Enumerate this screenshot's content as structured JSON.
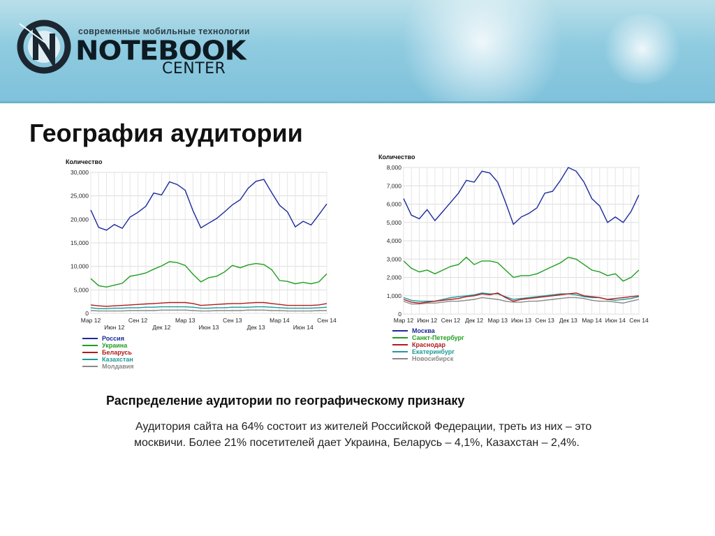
{
  "header": {
    "logo_tagline": "современные мобильные технологии",
    "logo_main": "NOTEBOOK",
    "logo_sub": "CENTER"
  },
  "page_title": "География аудитории",
  "section_title": "Распределение аудитории по географическому признаку",
  "body_text": "Аудитория сайта на 64% состоит из жителей Российской Федерации, треть из них – это москвичи. Более 21% посетителей дает Украина, Беларусь – 4,1%, Казахстан – 2,4%.",
  "chart_data": [
    {
      "type": "line",
      "ylabel": "Количество",
      "ylim": [
        0,
        30000
      ],
      "yticks": [
        "0",
        "5,000",
        "10,000",
        "15,000",
        "20,000",
        "25,000",
        "30,000"
      ],
      "xticks_top": [
        "Мар 12",
        "Сен 12",
        "Мар 13",
        "Сен 13",
        "Мар 14",
        "Сен 14"
      ],
      "xticks_bottom": [
        "Июн 12",
        "Дек 12",
        "Июн 13",
        "Дек 13",
        "Июн 14"
      ],
      "grid": true,
      "legend_position": "bottom-left",
      "series": [
        {
          "name": "Россия",
          "color": "#1b2a9a",
          "values": [
            22000,
            18300,
            17700,
            18900,
            18100,
            20500,
            21500,
            22800,
            25600,
            25200,
            28000,
            27400,
            26200,
            21800,
            18200,
            19200,
            20200,
            21600,
            23100,
            24200,
            26600,
            28100,
            28500,
            25700,
            23000,
            21600,
            18400,
            19600,
            18800,
            21000,
            23300
          ]
        },
        {
          "name": "Украина",
          "color": "#1f9e1f",
          "values": [
            7400,
            5900,
            5600,
            6000,
            6400,
            7900,
            8200,
            8600,
            9400,
            10100,
            11000,
            10800,
            10200,
            8300,
            6700,
            7600,
            7900,
            8800,
            10200,
            9700,
            10300,
            10600,
            10400,
            9300,
            7000,
            6800,
            6300,
            6600,
            6300,
            6700,
            8400
          ]
        },
        {
          "name": "Беларусь",
          "color": "#b21b1b",
          "values": [
            1800,
            1600,
            1500,
            1600,
            1700,
            1800,
            1900,
            2000,
            2100,
            2200,
            2300,
            2300,
            2300,
            2100,
            1700,
            1800,
            1900,
            2000,
            2100,
            2100,
            2200,
            2300,
            2300,
            2100,
            1900,
            1700,
            1700,
            1700,
            1700,
            1800,
            2100
          ]
        },
        {
          "name": "Казахстан",
          "color": "#1c9a9a",
          "values": [
            1200,
            1000,
            1000,
            1100,
            1100,
            1200,
            1200,
            1300,
            1300,
            1400,
            1400,
            1400,
            1400,
            1300,
            1100,
            1100,
            1200,
            1200,
            1300,
            1300,
            1300,
            1400,
            1400,
            1300,
            1200,
            1100,
            1100,
            1100,
            1100,
            1200,
            1300
          ]
        },
        {
          "name": "Молдавия",
          "color": "#888888",
          "values": [
            600,
            500,
            500,
            500,
            500,
            600,
            600,
            600,
            600,
            700,
            700,
            700,
            700,
            600,
            500,
            500,
            600,
            600,
            600,
            600,
            700,
            700,
            700,
            600,
            600,
            500,
            500,
            500,
            500,
            600,
            600
          ]
        }
      ]
    },
    {
      "type": "line",
      "ylabel": "Количество",
      "ylim": [
        0,
        8000
      ],
      "yticks": [
        "0",
        "1,000",
        "2,000",
        "3,000",
        "4,000",
        "5,000",
        "6,000",
        "7,000",
        "8,000"
      ],
      "xticks": [
        "Мар 12",
        "Июн 12",
        "Сен 12",
        "Дек 12",
        "Мар 13",
        "Июн 13",
        "Сен 13",
        "Дек 13",
        "Мар 14",
        "Июн 14",
        "Сен 14"
      ],
      "grid": true,
      "legend_position": "bottom-left",
      "series": [
        {
          "name": "Москва",
          "color": "#1b2a9a",
          "values": [
            6300,
            5400,
            5200,
            5700,
            5100,
            5600,
            6100,
            6600,
            7300,
            7200,
            7800,
            7700,
            7200,
            6100,
            4900,
            5300,
            5500,
            5800,
            6600,
            6700,
            7300,
            8000,
            7800,
            7200,
            6300,
            5900,
            5000,
            5300,
            5000,
            5600,
            6500
          ]
        },
        {
          "name": "Санкт-Петербург",
          "color": "#1f9e1f",
          "values": [
            2900,
            2500,
            2300,
            2400,
            2200,
            2400,
            2600,
            2700,
            3100,
            2700,
            2900,
            2900,
            2800,
            2400,
            2000,
            2100,
            2100,
            2200,
            2400,
            2600,
            2800,
            3100,
            3000,
            2700,
            2400,
            2300,
            2100,
            2200,
            1800,
            2000,
            2400
          ]
        },
        {
          "name": "Краснодар",
          "color": "#b21b1b",
          "values": [
            800,
            650,
            600,
            650,
            700,
            750,
            800,
            850,
            950,
            1000,
            1100,
            1050,
            1150,
            900,
            700,
            800,
            850,
            900,
            950,
            1000,
            1050,
            1100,
            1150,
            1000,
            950,
            900,
            800,
            850,
            900,
            950,
            1000
          ]
        },
        {
          "name": "Екатеринбург",
          "color": "#1c9a9a",
          "values": [
            900,
            750,
            700,
            700,
            700,
            800,
            900,
            950,
            1000,
            1050,
            1150,
            1100,
            1100,
            950,
            800,
            850,
            900,
            950,
            1000,
            1050,
            1100,
            1100,
            1050,
            950,
            900,
            900,
            800,
            750,
            800,
            850,
            950
          ]
        },
        {
          "name": "Новосибирск",
          "color": "#888888",
          "values": [
            700,
            550,
            550,
            600,
            600,
            650,
            700,
            700,
            750,
            800,
            900,
            850,
            800,
            700,
            650,
            650,
            700,
            700,
            750,
            800,
            850,
            900,
            900,
            850,
            750,
            700,
            700,
            650,
            600,
            700,
            800
          ]
        }
      ]
    }
  ]
}
